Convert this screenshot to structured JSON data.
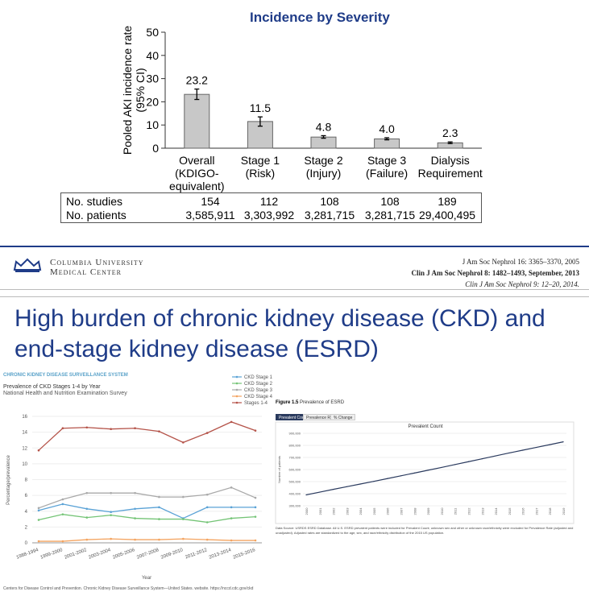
{
  "slide1": {
    "title": "Incidence by Severity",
    "y_axis_label_line1": "Pooled AKI incidence rate",
    "y_axis_label_line2": "(95% CI)",
    "table": {
      "row1_label": "No. studies",
      "row2_label": "No. patients",
      "studies": [
        "154",
        "112",
        "108",
        "108",
        "189"
      ],
      "patients": [
        "3,585,911",
        "3,303,992",
        "3,281,715",
        "3,281,715",
        "29,400,495"
      ]
    },
    "footer": {
      "org_line1": "Columbia University",
      "org_line2": "Medical Center",
      "ref1": "J Am Soc Nephrol 16: 3365–3370, 2005",
      "ref2": "Clin J Am Soc Nephrol 8: 1482–1493, September, 2013",
      "ref3": "Clin J Am Soc Nephrol 9: 12–20, 2014."
    }
  },
  "slide2": {
    "title_line1": "High burden of chronic kidney disease (CKD) and",
    "title_line2": "end-stage kidney disease (ESRD)",
    "ckd_panel": {
      "brand": "CHRONIC KIDNEY DISEASE SURVEILLANCE SYSTEM",
      "title": "Prevalence of CKD Stages 1-4 by Year",
      "subtitle": "National Health and Nutrition Examination Survey",
      "source": "Centers for Disease Control and Prevention. Chronic Kidney Disease Surveillance System—United States. website. https://nccd.cdc.gov/ckd"
    },
    "esrd_panel": {
      "caption_bold": "Figure 1.5",
      "caption": "Prevalence of ESRD",
      "tabs": [
        "Prevalent Count",
        "Prevalence Rate",
        "% Change"
      ],
      "active_tab": "Prevalent Count",
      "footnote": "Data Source: USRDS ESRD Database. All U.S. ESRD prevalent patients were included for Prevalent Count; unknown sex and other or unknown race/ethnicity were excluded for Prevalence Rate (adjusted and unadjusted). Adjusted rates are standardized to the age, sex, and race/ethnicity distribution of the 2015 US population."
    }
  },
  "colors": {
    "title_blue": "#1f3c88",
    "bar_gray": "#c8c8c8",
    "stage1": "#5aa2d6",
    "stage2": "#74c476",
    "stage3": "#a9a9a9",
    "stage4": "#f4a460",
    "stages1_4": "#b5544a",
    "esrd_line": "#2a3a5e"
  },
  "chart_data": [
    {
      "type": "bar",
      "title": "Incidence by Severity",
      "ylabel": "Pooled AKI incidence rate (95% CI)",
      "ylim": [
        0,
        50
      ],
      "yticks": [
        0,
        10,
        20,
        30,
        40,
        50
      ],
      "categories": [
        [
          "Overall",
          "(KDIGO-",
          "equivalent)"
        ],
        [
          "Stage 1",
          "(Risk)"
        ],
        [
          "Stage 2",
          "(Injury)"
        ],
        [
          "Stage 3",
          "(Failure)"
        ],
        [
          "Dialysis",
          "Requirement"
        ]
      ],
      "values": [
        23.2,
        11.5,
        4.8,
        4.0,
        2.3
      ],
      "value_labels": [
        "23.2",
        "11.5",
        "4.8",
        "4.0",
        "2.3"
      ],
      "ci_low": [
        21.0,
        9.5,
        4.3,
        3.6,
        2.0
      ],
      "ci_high": [
        25.5,
        13.5,
        5.4,
        4.5,
        2.7
      ]
    },
    {
      "type": "line",
      "title": "Prevalence of CKD Stages 1-4 by Year",
      "ylabel": "Percentage/prevalence",
      "xlabel": "Year",
      "ylim": [
        0,
        16
      ],
      "yticks": [
        0,
        2,
        4,
        6,
        8,
        10,
        12,
        14,
        16
      ],
      "categories": [
        "1988-1994",
        "1999-2000",
        "2001-2002",
        "2003-2004",
        "2005-2006",
        "2007-2008",
        "2009-2010",
        "2011-2012",
        "2013-2014",
        "2015-2016"
      ],
      "series": [
        {
          "name": "CKD Stage 1",
          "color": "#5aa2d6",
          "values": [
            4.1,
            4.9,
            4.3,
            3.9,
            4.3,
            4.5,
            3.1,
            4.5,
            4.5,
            4.5
          ]
        },
        {
          "name": "CKD Stage 2",
          "color": "#74c476",
          "values": [
            2.9,
            3.6,
            3.2,
            3.5,
            3.1,
            3.0,
            3.0,
            2.6,
            3.1,
            3.3
          ]
        },
        {
          "name": "CKD Stage 3",
          "color": "#a9a9a9",
          "values": [
            4.4,
            5.5,
            6.3,
            6.3,
            6.3,
            5.8,
            5.8,
            6.1,
            7.0,
            5.7
          ]
        },
        {
          "name": "CKD Stage 4",
          "color": "#f4a460",
          "values": [
            0.2,
            0.2,
            0.4,
            0.5,
            0.4,
            0.4,
            0.5,
            0.4,
            0.3,
            0.3
          ]
        },
        {
          "name": "Stages 1-4",
          "color": "#b5544a",
          "values": [
            11.7,
            14.5,
            14.6,
            14.4,
            14.5,
            14.1,
            12.7,
            13.9,
            15.3,
            14.2
          ]
        }
      ]
    },
    {
      "type": "line",
      "title": "Prevalent Count",
      "ylabel": "Number of patients",
      "ylim": [
        300000,
        900000
      ],
      "yticks": [
        "300,000",
        "400,000",
        "500,000",
        "600,000",
        "700,000",
        "800,000",
        "900,000"
      ],
      "x": [
        "2000",
        "2001",
        "2002",
        "2003",
        "2004",
        "2005",
        "2006",
        "2007",
        "2008",
        "2009",
        "2010",
        "2011",
        "2012",
        "2013",
        "2014",
        "2015",
        "2016",
        "2017",
        "2018",
        "2019"
      ],
      "values": [
        390000,
        413000,
        436000,
        458000,
        480000,
        502000,
        525000,
        548000,
        571000,
        594000,
        617000,
        641000,
        665000,
        689000,
        713000,
        737000,
        760000,
        783000,
        806000,
        829000
      ]
    }
  ]
}
